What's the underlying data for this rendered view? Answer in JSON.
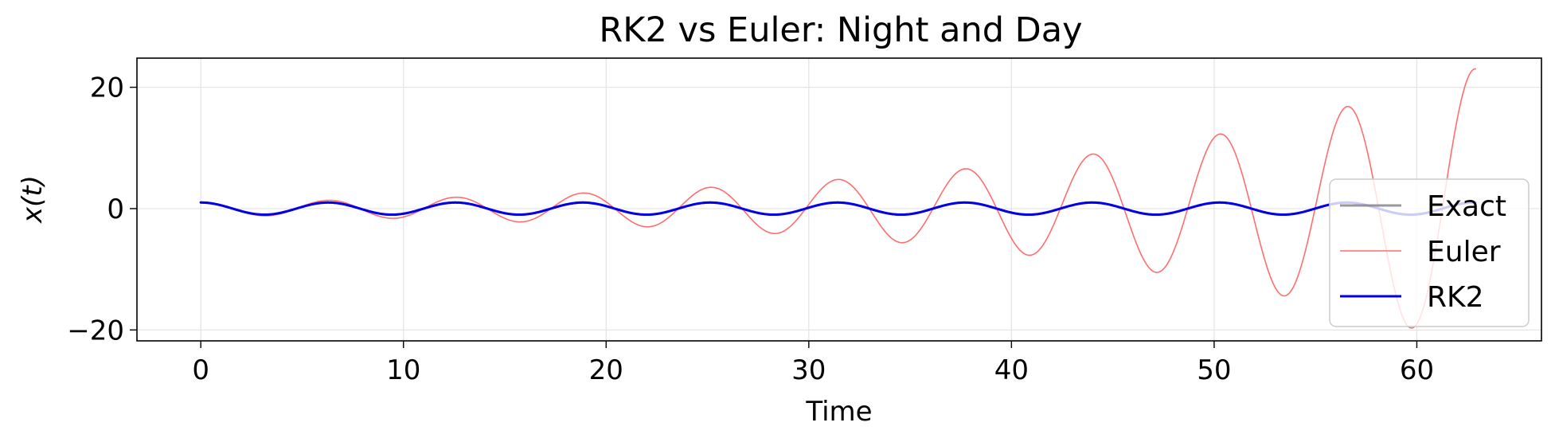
{
  "chart_data": {
    "type": "line",
    "title": "RK2 vs Euler: Night and Day",
    "xlabel": "Time",
    "ylabel": "x(t)",
    "xlim": [
      -3.15,
      66.15
    ],
    "ylim": [
      -21.8,
      24.8
    ],
    "xticks": [
      0,
      10,
      20,
      30,
      40,
      50,
      60
    ],
    "xtick_labels": [
      "0",
      "10",
      "20",
      "30",
      "40",
      "50",
      "60"
    ],
    "yticks": [
      -20,
      0,
      20
    ],
    "ytick_labels": [
      "−20",
      "0",
      "20"
    ],
    "grid": true,
    "legend_position": "lower-right",
    "series": [
      {
        "name": "Exact",
        "color": "#808080",
        "function": "cos(t)",
        "t_end": 62.9
      },
      {
        "name": "Euler",
        "color": "#ff6e6e",
        "function": "cos(t) * exp(0.0499 * t)",
        "t_end": 62.9
      },
      {
        "name": "RK2",
        "color": "#0000ee",
        "function": "cos(t)",
        "t_end": 62.9
      }
    ]
  }
}
